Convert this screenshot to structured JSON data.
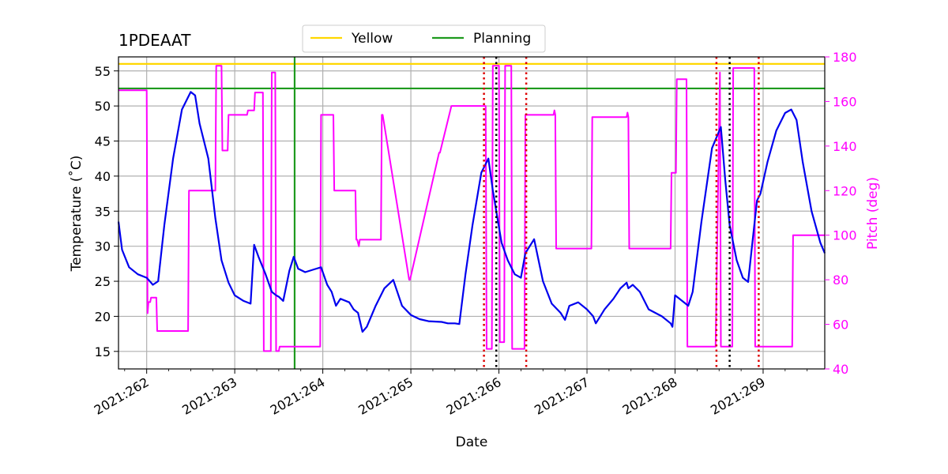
{
  "chart_data": {
    "type": "line",
    "title": "1PDEAAT",
    "xlabel": "Date",
    "ylabel": "Temperature ($^\\circ$C)",
    "ylabel_display": "Temperature (˚C)",
    "ylabel_right": "Pitch (deg)",
    "xlim": [
      261.68,
      269.7
    ],
    "ylim": [
      12.5,
      57
    ],
    "ylim_right": [
      40,
      180
    ],
    "x_ticks": [
      262,
      263,
      264,
      265,
      266,
      267,
      268,
      269
    ],
    "x_tick_labels": [
      "2021:262",
      "2021:263",
      "2021:264",
      "2021:265",
      "2021:266",
      "2021:267",
      "2021:268",
      "2021:269"
    ],
    "y_ticks": [
      15,
      20,
      25,
      30,
      35,
      40,
      45,
      50,
      55
    ],
    "y_tick_labels": [
      "15",
      "20",
      "25",
      "30",
      "35",
      "40",
      "45",
      "50",
      "55"
    ],
    "y_ticks_right": [
      40,
      60,
      80,
      100,
      120,
      140,
      160,
      180
    ],
    "y_tick_labels_right": [
      "40",
      "60",
      "80",
      "100",
      "120",
      "140",
      "160",
      "180"
    ],
    "grid": true,
    "legend_position": "top-center",
    "colors": {
      "temperature": "#0000ee",
      "pitch": "#ff00ff",
      "yellow": "#ffd700",
      "planning": "#1e9a1e",
      "red_marker": "#dd0000",
      "black_marker": "#000000",
      "grid": "#b0b0b0"
    },
    "legend": [
      {
        "name": "Yellow",
        "color": "#ffd700"
      },
      {
        "name": "Planning",
        "color": "#1e9a1e"
      }
    ],
    "limits": [
      {
        "name": "Yellow",
        "y": 56
      },
      {
        "name": "Planning",
        "y": 52.5
      }
    ],
    "planning_vline_x": 263.68,
    "red_dotted_x": [
      265.83,
      266.31,
      268.47,
      268.95
    ],
    "black_dotted_x": [
      265.97,
      268.62
    ],
    "series": [
      {
        "name": "Temperature",
        "axis": "left",
        "x": [
          261.68,
          261.72,
          261.8,
          261.9,
          262.0,
          262.05,
          262.07,
          262.13,
          262.2,
          262.3,
          262.4,
          262.5,
          262.55,
          262.6,
          262.7,
          262.78,
          262.85,
          262.93,
          263.0,
          263.1,
          263.18,
          263.22,
          263.27,
          263.35,
          263.42,
          263.47,
          263.5,
          263.55,
          263.62,
          263.67,
          263.72,
          263.8,
          263.9,
          263.98,
          264.05,
          264.1,
          264.15,
          264.2,
          264.3,
          264.35,
          264.4,
          264.45,
          264.5,
          264.6,
          264.7,
          264.8,
          264.9,
          265.0,
          265.1,
          265.2,
          265.35,
          265.42,
          265.5,
          265.55,
          265.62,
          265.7,
          265.8,
          265.88,
          265.93,
          265.97,
          266.03,
          266.1,
          266.18,
          266.25,
          266.3,
          266.4,
          266.5,
          266.6,
          266.7,
          266.75,
          266.8,
          266.9,
          267.0,
          267.07,
          267.1,
          267.2,
          267.3,
          267.38,
          267.45,
          267.47,
          267.52,
          267.6,
          267.7,
          267.85,
          267.95,
          267.97,
          268.0,
          268.12,
          268.15,
          268.2,
          268.3,
          268.42,
          268.52,
          268.57,
          268.62,
          268.7,
          268.77,
          268.83,
          268.9,
          268.93,
          268.97,
          269.05,
          269.15,
          269.25,
          269.32,
          269.38,
          269.45,
          269.55,
          269.65,
          269.7
        ],
        "values": [
          33.5,
          29.5,
          27.0,
          26.0,
          25.5,
          24.8,
          24.5,
          25.0,
          33.0,
          42.5,
          49.5,
          52.0,
          51.5,
          47.5,
          42.5,
          34.0,
          28.0,
          24.8,
          23.0,
          22.2,
          21.8,
          30.2,
          28.5,
          26.0,
          23.5,
          23.0,
          22.8,
          22.2,
          26.5,
          28.5,
          26.8,
          26.3,
          26.7,
          27.0,
          24.5,
          23.5,
          21.5,
          22.5,
          22.0,
          21.0,
          20.5,
          17.8,
          18.5,
          21.5,
          24.0,
          25.2,
          21.5,
          20.2,
          19.6,
          19.3,
          19.2,
          19.0,
          19.0,
          18.9,
          26.0,
          33.0,
          40.5,
          42.5,
          38.0,
          35.0,
          30.5,
          28.0,
          26.0,
          25.5,
          29.0,
          31.0,
          25.0,
          21.8,
          20.5,
          19.5,
          21.5,
          22.0,
          21.0,
          20.0,
          19.0,
          21.0,
          22.5,
          24.0,
          24.8,
          24.0,
          24.5,
          23.5,
          21.0,
          20.0,
          19.0,
          18.5,
          23.0,
          21.8,
          21.5,
          23.5,
          33.5,
          44.0,
          47.0,
          39.5,
          33.0,
          28.0,
          25.5,
          24.9,
          33.0,
          36.5,
          37.5,
          42.0,
          46.5,
          49.0,
          49.5,
          48.0,
          42.0,
          35.0,
          30.5,
          29.0
        ]
      },
      {
        "name": "Pitch",
        "axis": "right",
        "x": [
          261.68,
          262.0,
          262.01,
          262.02,
          262.04,
          262.05,
          262.11,
          262.12,
          262.47,
          262.48,
          262.78,
          262.79,
          262.85,
          262.86,
          262.92,
          262.93,
          263.14,
          263.15,
          263.22,
          263.23,
          263.32,
          263.33,
          263.37,
          263.38,
          263.41,
          263.42,
          263.46,
          263.47,
          263.5,
          263.51,
          263.64,
          263.65,
          263.97,
          263.98,
          264.12,
          264.13,
          264.37,
          264.38,
          264.39,
          264.41,
          264.42,
          264.66,
          264.67,
          264.68,
          264.98,
          264.99,
          265.32,
          265.33,
          265.46,
          265.47,
          265.58,
          265.59,
          265.85,
          265.86,
          265.92,
          265.93,
          266.0,
          266.01,
          266.06,
          266.07,
          266.14,
          266.15,
          266.29,
          266.3,
          266.62,
          266.63,
          266.64,
          266.65,
          267.05,
          267.06,
          267.45,
          267.46,
          267.47,
          267.48,
          267.95,
          267.96,
          268.0,
          268.01,
          268.02,
          268.13,
          268.14,
          268.45,
          268.46,
          268.51,
          268.52,
          268.65,
          268.66,
          268.9,
          268.91,
          268.94,
          268.95,
          269.33,
          269.34,
          269.35,
          269.7
        ],
        "values": [
          165,
          165,
          65,
          70,
          70,
          72,
          72,
          57,
          57,
          120,
          120,
          176,
          176,
          138,
          138,
          154,
          154,
          156,
          156,
          164,
          164,
          48,
          48,
          48,
          48,
          173,
          173,
          48,
          48,
          50,
          50,
          50,
          50,
          154,
          154,
          120,
          120,
          98,
          98,
          95,
          98,
          98,
          154,
          154,
          80,
          80,
          137,
          137,
          158,
          158,
          158,
          158,
          158,
          49,
          49,
          176,
          176,
          52,
          52,
          176,
          176,
          49,
          49,
          154,
          154,
          156,
          154,
          94,
          94,
          153,
          153,
          155,
          153,
          94,
          94,
          128,
          128,
          128,
          170,
          170,
          50,
          50,
          50,
          173,
          50,
          50,
          175,
          175,
          50,
          50,
          50,
          50,
          100,
          100,
          100
        ]
      }
    ]
  }
}
